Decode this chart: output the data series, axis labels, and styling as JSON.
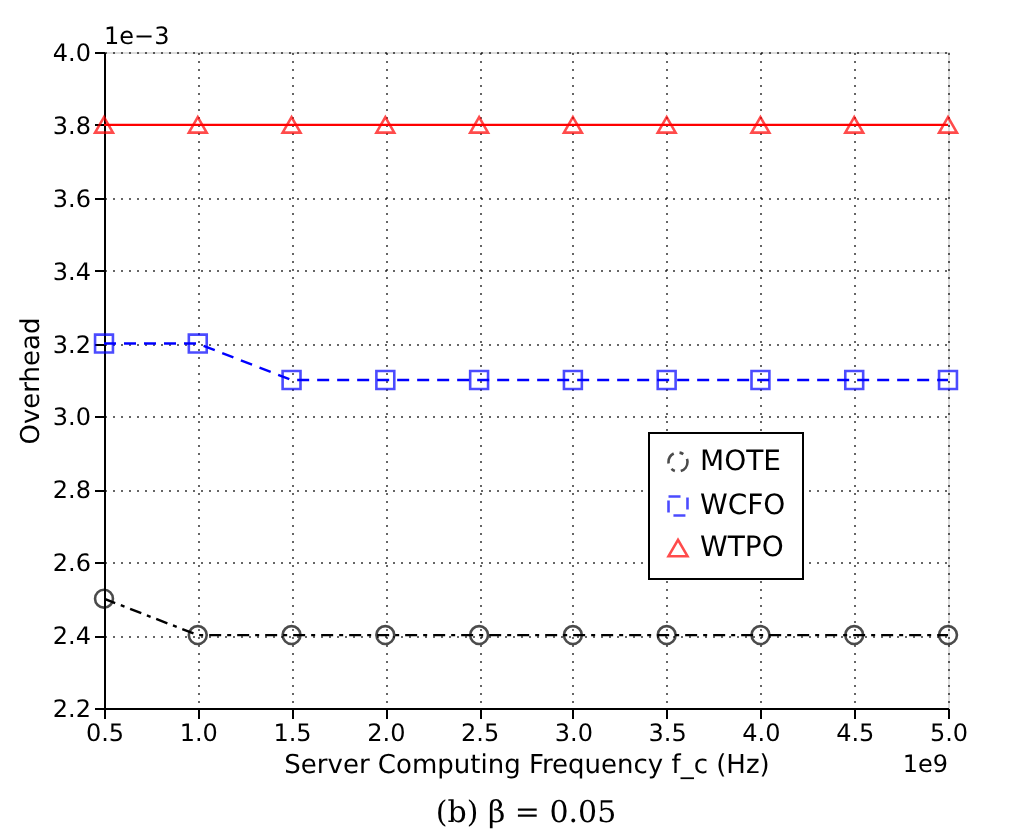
{
  "chart_data": {
    "type": "line",
    "title": "(b) β = 0.05",
    "xlabel": "Server Computing Frequency f_c (Hz)",
    "ylabel": "Overhead",
    "x": [
      0.5,
      1.0,
      1.5,
      2.0,
      2.5,
      3.0,
      3.5,
      4.0,
      4.5,
      5.0
    ],
    "series": [
      {
        "name": "MOTE",
        "color": "#000000",
        "values": [
          2.5,
          2.4,
          2.4,
          2.4,
          2.4,
          2.4,
          2.4,
          2.4,
          2.4,
          2.4
        ],
        "marker": "circle",
        "line_style": "dashdot"
      },
      {
        "name": "WCFO",
        "color": "#0000ff",
        "values": [
          3.2,
          3.2,
          3.1,
          3.1,
          3.1,
          3.1,
          3.1,
          3.1,
          3.1,
          3.1
        ],
        "marker": "square",
        "line_style": "dashed"
      },
      {
        "name": "WTPO",
        "color": "#ff0000",
        "values": [
          3.8,
          3.8,
          3.8,
          3.8,
          3.8,
          3.8,
          3.8,
          3.8,
          3.8,
          3.8
        ],
        "marker": "triangle",
        "line_style": "solid"
      }
    ],
    "xlim": [
      0.5,
      5.0
    ],
    "xticks": [
      0.5,
      {
        "value": 1,
        "label": "1.0"
      },
      1.5,
      {
        "value": 2,
        "label": "2.0"
      },
      2.5,
      {
        "value": 3,
        "label": "3.0"
      },
      3.5,
      {
        "value": 4,
        "label": "4.0"
      },
      4.5,
      {
        "value": 5,
        "label": "5.0"
      }
    ],
    "ylim": [
      2.2,
      4.0
    ],
    "yticks": [
      2.2,
      2.4,
      2.6,
      2.8,
      {
        "value": 3,
        "label": "3.0"
      },
      3.2,
      3.4,
      3.6,
      3.8,
      {
        "value": 4,
        "label": "4.0"
      }
    ],
    "annotations": [
      "1e−3",
      "1e9"
    ],
    "grid": true,
    "legend": "right"
  }
}
